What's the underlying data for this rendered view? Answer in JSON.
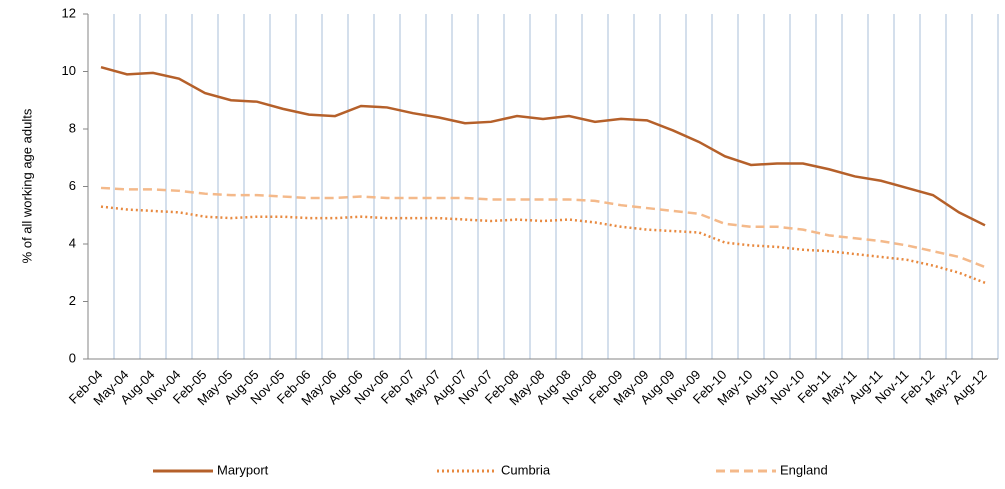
{
  "chart_data": {
    "type": "line",
    "ylabel": "% of all working age adults",
    "categories": [
      "Feb-04",
      "May-04",
      "Aug-04",
      "Nov-04",
      "Feb-05",
      "May-05",
      "Aug-05",
      "Nov-05",
      "Feb-06",
      "May-06",
      "Aug-06",
      "Nov-06",
      "Feb-07",
      "May-07",
      "Aug-07",
      "Nov-07",
      "Feb-08",
      "May-08",
      "Aug-08",
      "Nov-08",
      "Feb-09",
      "May-09",
      "Aug-09",
      "Nov-09",
      "Feb-10",
      "May-10",
      "Aug-10",
      "Nov-10",
      "Feb-11",
      "May-11",
      "Aug-11",
      "Nov-11",
      "Feb-12",
      "May-12",
      "Aug-12"
    ],
    "series": [
      {
        "name": "Maryport",
        "color": "#b5602a",
        "dash": "solid",
        "values": [
          10.15,
          9.9,
          9.95,
          9.75,
          9.25,
          9.0,
          8.95,
          8.7,
          8.5,
          8.45,
          8.8,
          8.75,
          8.55,
          8.4,
          8.2,
          8.25,
          8.45,
          8.35,
          8.45,
          8.25,
          8.35,
          8.3,
          7.95,
          7.55,
          7.05,
          6.75,
          6.8,
          6.8,
          6.6,
          6.35,
          6.2,
          5.95,
          5.7,
          5.1,
          4.65
        ]
      },
      {
        "name": "Cumbria",
        "color": "#e8893f",
        "dash": "dotted",
        "values": [
          5.3,
          5.2,
          5.15,
          5.1,
          4.95,
          4.9,
          4.95,
          4.95,
          4.9,
          4.9,
          4.95,
          4.9,
          4.9,
          4.9,
          4.85,
          4.8,
          4.85,
          4.8,
          4.85,
          4.75,
          4.6,
          4.5,
          4.45,
          4.4,
          4.05,
          3.95,
          3.9,
          3.8,
          3.75,
          3.65,
          3.55,
          3.45,
          3.25,
          3.0,
          2.65
        ]
      },
      {
        "name": "England",
        "color": "#f4b98a",
        "dash": "dashed",
        "values": [
          5.95,
          5.9,
          5.9,
          5.85,
          5.75,
          5.7,
          5.7,
          5.65,
          5.6,
          5.6,
          5.65,
          5.6,
          5.6,
          5.6,
          5.6,
          5.55,
          5.55,
          5.55,
          5.55,
          5.5,
          5.35,
          5.25,
          5.15,
          5.05,
          4.7,
          4.6,
          4.6,
          4.5,
          4.3,
          4.2,
          4.1,
          3.95,
          3.75,
          3.55,
          3.2
        ]
      }
    ],
    "ylim": [
      0,
      12
    ],
    "yticks": [
      0,
      2,
      4,
      6,
      8,
      10,
      12
    ],
    "xgrid": true,
    "legend": "bottom"
  }
}
